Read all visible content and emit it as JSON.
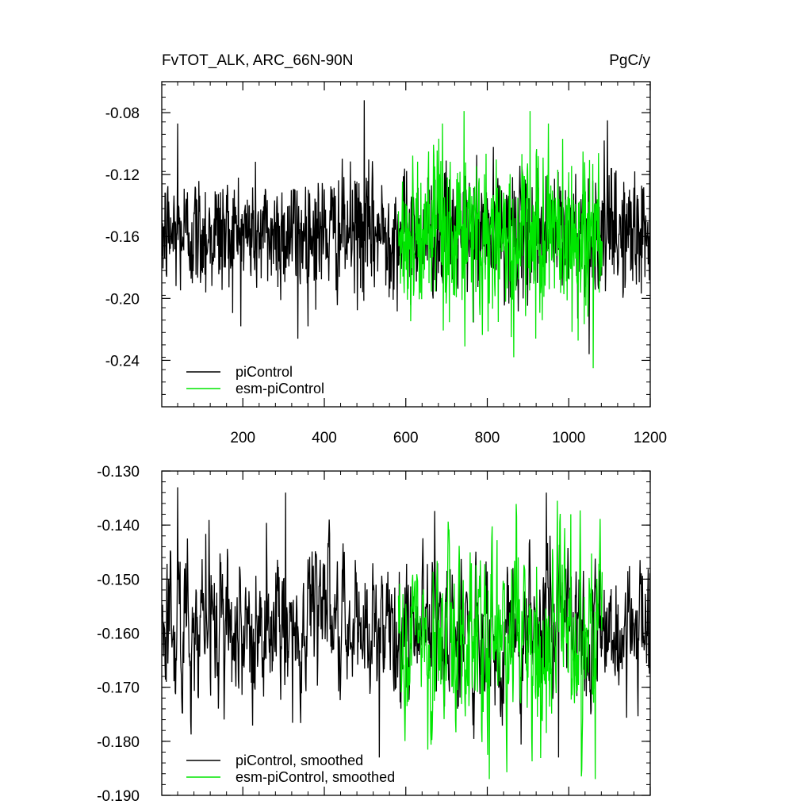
{
  "header": {
    "title": "FvTOT_ALK, ARC_66N-90N",
    "units": "PgC/y"
  },
  "colors": {
    "piControl": "#000000",
    "esm_piControl": "#00e600",
    "axis": "#000000"
  },
  "chart_data": [
    {
      "type": "line",
      "title": "FvTOT_ALK, ARC_66N-90N",
      "units": "PgC/y",
      "xlim": [
        1,
        1200
      ],
      "ylim": [
        -0.27,
        -0.06
      ],
      "x_ticks": [
        200,
        400,
        600,
        800,
        1000,
        1200
      ],
      "x_tick_labels": [
        "200",
        "400",
        "600",
        "800",
        "1000",
        "1200"
      ],
      "y_ticks": [
        -0.24,
        -0.2,
        -0.16,
        -0.12,
        -0.08
      ],
      "y_tick_labels": [
        "-0.24",
        "-0.20",
        "-0.16",
        "-0.12",
        "-0.08"
      ],
      "legend": {
        "placement": "bottom-left",
        "entries": [
          "piControl",
          "esm-piControl"
        ]
      },
      "series": [
        {
          "name": "piControl",
          "color": "#000000",
          "x_start": 1,
          "x_end": 1200,
          "mean": -0.158,
          "std": 0.02,
          "peaks": [
            [
              498,
              -0.072
            ],
            [
              40,
              -0.087
            ],
            [
              1095,
              -0.085
            ],
            [
              335,
              -0.226
            ],
            [
              1050,
              -0.236
            ]
          ]
        },
        {
          "name": "esm-piControl",
          "color": "#00e600",
          "x_start": 582,
          "x_end": 1082,
          "mean": -0.16,
          "std": 0.027,
          "peaks": [
            [
              950,
              -0.087
            ],
            [
              690,
              -0.087
            ],
            [
              1060,
              -0.245
            ],
            [
              865,
              -0.238
            ],
            [
              745,
              -0.231
            ]
          ]
        }
      ]
    },
    {
      "type": "line",
      "title": "",
      "xlim": [
        1,
        1200
      ],
      "ylim": [
        -0.19,
        -0.13
      ],
      "x_ticks": [
        200,
        400,
        600,
        800,
        1000,
        1200
      ],
      "x_tick_labels": [],
      "y_ticks": [
        -0.19,
        -0.18,
        -0.17,
        -0.16,
        -0.15,
        -0.14,
        -0.13
      ],
      "y_tick_labels": [
        "-0.190",
        "-0.180",
        "-0.170",
        "-0.160",
        "-0.150",
        "-0.140",
        "-0.130"
      ],
      "legend": {
        "placement": "bottom-left",
        "entries": [
          "piControl, smoothed",
          "esm-piControl, smoothed"
        ]
      },
      "series": [
        {
          "name": "piControl, smoothed",
          "color": "#000000",
          "x_start": 1,
          "x_end": 1200,
          "mean": -0.159,
          "std": 0.0072,
          "peaks": [
            [
              40,
              -0.133
            ],
            [
              305,
              -0.134
            ],
            [
              945,
              -0.134
            ],
            [
              535,
              -0.183
            ],
            [
              975,
              -0.183
            ],
            [
              12,
              -0.169
            ]
          ]
        },
        {
          "name": "esm-piControl, smoothed",
          "color": "#00e600",
          "x_start": 582,
          "x_end": 1082,
          "mean": -0.161,
          "std": 0.0085,
          "peaks": [
            [
              1005,
              -0.138
            ],
            [
              705,
              -0.141
            ],
            [
              1065,
              -0.187
            ],
            [
              805,
              -0.187
            ]
          ]
        }
      ]
    }
  ]
}
